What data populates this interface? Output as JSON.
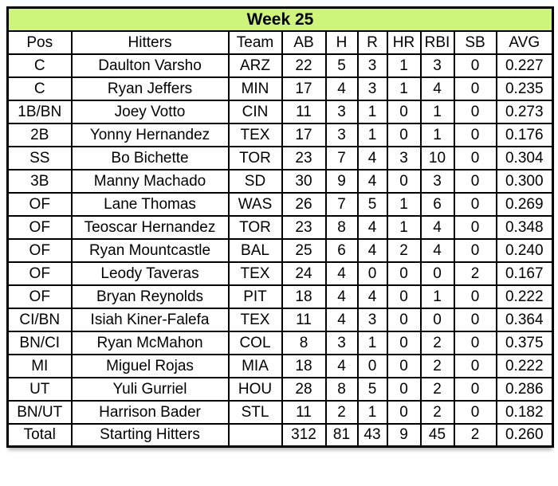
{
  "chart_data": {
    "type": "table",
    "title": "Week 25",
    "columns": [
      "Pos",
      "Hitters",
      "Team",
      "AB",
      "H",
      "R",
      "HR",
      "RBI",
      "SB",
      "AVG"
    ],
    "rows": [
      {
        "pos": "C",
        "player": "Daulton Varsho",
        "team": "ARZ",
        "ab": "22",
        "h": "5",
        "r": "3",
        "hr": "1",
        "rbi": "3",
        "sb": "0",
        "avg": "0.227"
      },
      {
        "pos": "C",
        "player": "Ryan Jeffers",
        "team": "MIN",
        "ab": "17",
        "h": "4",
        "r": "3",
        "hr": "1",
        "rbi": "4",
        "sb": "0",
        "avg": "0.235"
      },
      {
        "pos": "1B/BN",
        "player": "Joey Votto",
        "team": "CIN",
        "ab": "11",
        "h": "3",
        "r": "1",
        "hr": "0",
        "rbi": "1",
        "sb": "0",
        "avg": "0.273"
      },
      {
        "pos": "2B",
        "player": "Yonny Hernandez",
        "team": "TEX",
        "ab": "17",
        "h": "3",
        "r": "1",
        "hr": "0",
        "rbi": "1",
        "sb": "0",
        "avg": "0.176"
      },
      {
        "pos": "SS",
        "player": "Bo Bichette",
        "team": "TOR",
        "ab": "23",
        "h": "7",
        "r": "4",
        "hr": "3",
        "rbi": "10",
        "sb": "0",
        "avg": "0.304"
      },
      {
        "pos": "3B",
        "player": "Manny Machado",
        "team": "SD",
        "ab": "30",
        "h": "9",
        "r": "4",
        "hr": "0",
        "rbi": "3",
        "sb": "0",
        "avg": "0.300"
      },
      {
        "pos": "OF",
        "player": "Lane Thomas",
        "team": "WAS",
        "ab": "26",
        "h": "7",
        "r": "5",
        "hr": "1",
        "rbi": "6",
        "sb": "0",
        "avg": "0.269"
      },
      {
        "pos": "OF",
        "player": "Teoscar Hernandez",
        "team": "TOR",
        "ab": "23",
        "h": "8",
        "r": "4",
        "hr": "1",
        "rbi": "4",
        "sb": "0",
        "avg": "0.348"
      },
      {
        "pos": "OF",
        "player": "Ryan Mountcastle",
        "team": "BAL",
        "ab": "25",
        "h": "6",
        "r": "4",
        "hr": "2",
        "rbi": "4",
        "sb": "0",
        "avg": "0.240"
      },
      {
        "pos": "OF",
        "player": "Leody Taveras",
        "team": "TEX",
        "ab": "24",
        "h": "4",
        "r": "0",
        "hr": "0",
        "rbi": "0",
        "sb": "2",
        "avg": "0.167"
      },
      {
        "pos": "OF",
        "player": "Bryan Reynolds",
        "team": "PIT",
        "ab": "18",
        "h": "4",
        "r": "4",
        "hr": "0",
        "rbi": "1",
        "sb": "0",
        "avg": "0.222"
      },
      {
        "pos": "CI/BN",
        "player": "Isiah Kiner-Falefa",
        "team": "TEX",
        "ab": "11",
        "h": "4",
        "r": "3",
        "hr": "0",
        "rbi": "0",
        "sb": "0",
        "avg": "0.364"
      },
      {
        "pos": "BN/CI",
        "player": "Ryan McMahon",
        "team": "COL",
        "ab": "8",
        "h": "3",
        "r": "1",
        "hr": "0",
        "rbi": "2",
        "sb": "0",
        "avg": "0.375"
      },
      {
        "pos": "MI",
        "player": "Miguel Rojas",
        "team": "MIA",
        "ab": "18",
        "h": "4",
        "r": "0",
        "hr": "0",
        "rbi": "2",
        "sb": "0",
        "avg": "0.222"
      },
      {
        "pos": "UT",
        "player": "Yuli Gurriel",
        "team": "HOU",
        "ab": "28",
        "h": "8",
        "r": "5",
        "hr": "0",
        "rbi": "2",
        "sb": "0",
        "avg": "0.286"
      },
      {
        "pos": "BN/UT",
        "player": "Harrison Bader",
        "team": "STL",
        "ab": "11",
        "h": "2",
        "r": "1",
        "hr": "0",
        "rbi": "2",
        "sb": "0",
        "avg": "0.182"
      }
    ],
    "total": {
      "pos": "Total",
      "player": "Starting Hitters",
      "team": "",
      "ab": "312",
      "h": "81",
      "r": "43",
      "hr": "9",
      "rbi": "45",
      "sb": "2",
      "avg": "0.260"
    },
    "layout_hints": {
      "legend": "none",
      "grid": "all-borders"
    }
  },
  "colors": {
    "title_bg": "#CEF47B",
    "border": "#000000",
    "text": "#000000",
    "page_bg": "#FFFFFF"
  }
}
